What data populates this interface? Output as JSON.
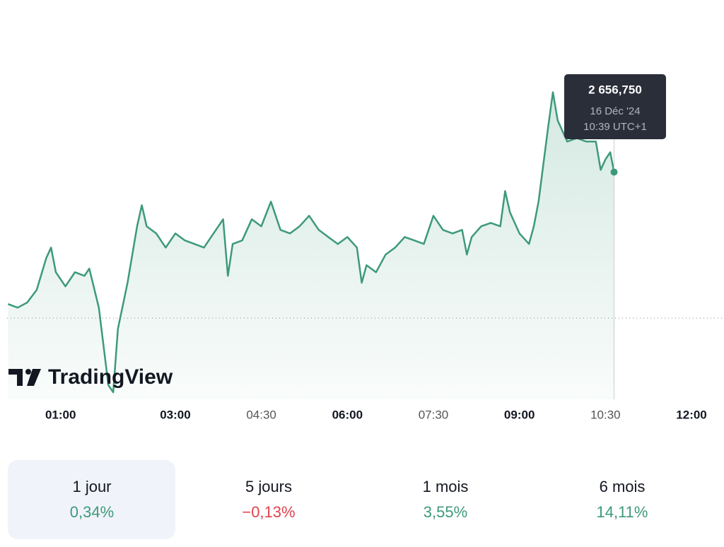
{
  "chart_data": {
    "type": "area",
    "x": [
      "00:05",
      "00:15",
      "00:25",
      "00:35",
      "00:45",
      "00:50",
      "00:55",
      "01:05",
      "01:15",
      "01:25",
      "01:30",
      "01:40",
      "01:50",
      "01:55",
      "02:00",
      "02:10",
      "02:20",
      "02:25",
      "02:30",
      "02:40",
      "02:50",
      "03:00",
      "03:10",
      "03:20",
      "03:30",
      "03:40",
      "03:50",
      "03:55",
      "04:00",
      "04:10",
      "04:20",
      "04:30",
      "04:40",
      "04:50",
      "05:00",
      "05:10",
      "05:20",
      "05:30",
      "05:40",
      "05:50",
      "06:00",
      "06:10",
      "06:15",
      "06:20",
      "06:30",
      "06:40",
      "06:50",
      "07:00",
      "07:10",
      "07:20",
      "07:30",
      "07:40",
      "07:50",
      "08:00",
      "08:05",
      "08:10",
      "08:20",
      "08:30",
      "08:40",
      "08:45",
      "08:50",
      "09:00",
      "09:10",
      "09:15",
      "09:20",
      "09:30",
      "09:35",
      "09:40",
      "09:50",
      "10:00",
      "10:10",
      "10:20",
      "10:25",
      "10:30",
      "10:35",
      "10:39"
    ],
    "values": [
      2648.62,
      2648.4,
      2648.71,
      2649.49,
      2651.45,
      2652.1,
      2650.58,
      2649.71,
      2650.58,
      2650.36,
      2650.8,
      2648.4,
      2643.62,
      2643.18,
      2647.1,
      2649.93,
      2653.41,
      2654.71,
      2653.41,
      2652.97,
      2652.1,
      2652.97,
      2652.54,
      2652.32,
      2652.1,
      2652.97,
      2653.84,
      2650.36,
      2652.32,
      2652.54,
      2653.84,
      2653.41,
      2654.93,
      2653.19,
      2652.97,
      2653.41,
      2654.06,
      2653.19,
      2652.75,
      2652.32,
      2652.75,
      2652.1,
      2649.93,
      2651.01,
      2650.58,
      2651.67,
      2652.1,
      2652.75,
      2652.54,
      2652.32,
      2654.06,
      2653.19,
      2652.97,
      2653.19,
      2651.67,
      2652.75,
      2653.41,
      2653.62,
      2653.41,
      2655.58,
      2654.28,
      2652.97,
      2652.32,
      2653.41,
      2654.93,
      2659.5,
      2661.67,
      2659.93,
      2658.63,
      2658.84,
      2658.63,
      2658.63,
      2656.89,
      2657.54,
      2657.97,
      2656.75
    ],
    "color": "#3d9a78",
    "previous_close": 2647.75,
    "xlim": [
      "00:04",
      "12:34"
    ],
    "xticks": [
      "01:00",
      "03:00",
      "04:30",
      "06:00",
      "07:30",
      "09:00",
      "10:30",
      "12:00"
    ],
    "ylim": [
      2642.75,
      2663.0
    ],
    "tooltip": {
      "value": "2 656,750",
      "date": "16 Déc '24",
      "time": "10:39 UTC+1"
    }
  },
  "logo": "TradingView",
  "periods": [
    {
      "label": "1 jour",
      "change": "0,34%",
      "color": "#3d9a78"
    },
    {
      "label": "5 jours",
      "change": "−0,13%",
      "color": "#e0424d"
    },
    {
      "label": "1 mois",
      "change": "3,55%",
      "color": "#3d9a78"
    },
    {
      "label": "6 mois",
      "change": "14,11%",
      "color": "#3d9a78"
    }
  ]
}
